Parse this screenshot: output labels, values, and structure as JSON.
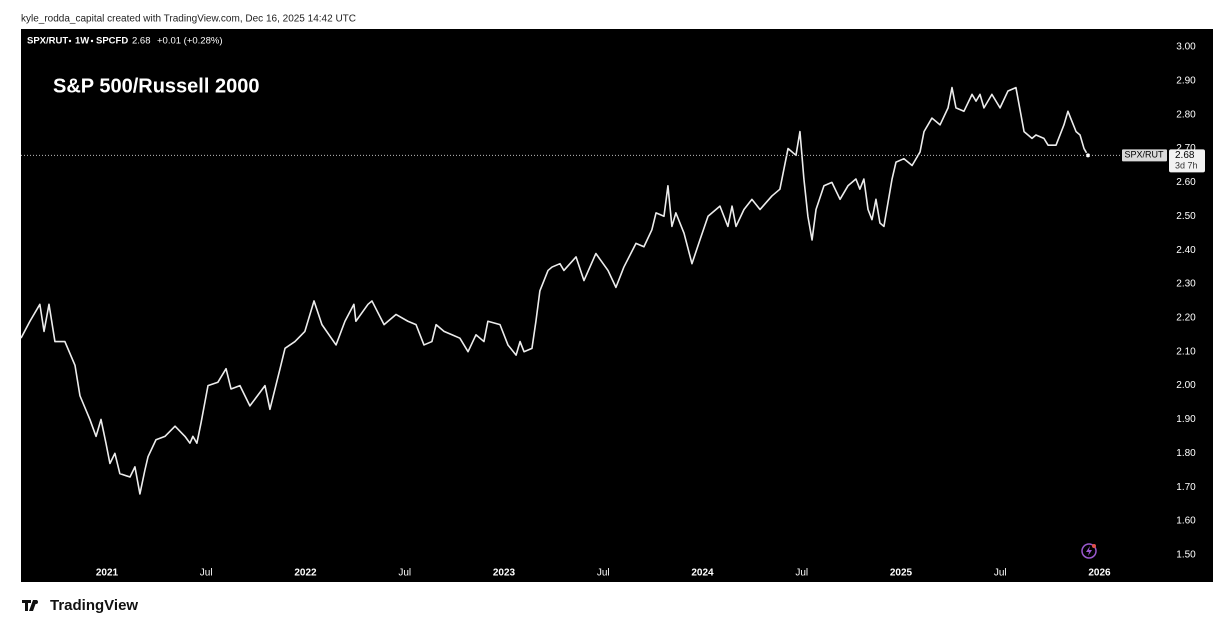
{
  "header": "kyle_rodda_capital created with TradingView.com, Dec 16, 2025 14:42 UTC",
  "footer": "TradingView",
  "chart_data": {
    "type": "line",
    "title": "S&P 500/Russell 2000",
    "symbol": "SPX/RUT",
    "interval": "1W",
    "exchange": "SPCFD",
    "last": 2.68,
    "change": "+0.01 (+0.28%)",
    "countdown": "3d 7h",
    "color": "#ececec",
    "grid": false,
    "x": [
      2020.567,
      2020.612,
      2020.662,
      2020.683,
      2020.708,
      2020.738,
      2020.788,
      2020.839,
      2020.864,
      2020.914,
      2020.945,
      2020.97,
      2020.995,
      2021.015,
      2021.04,
      2021.065,
      2021.116,
      2021.141,
      2021.166,
      2021.191,
      2021.207,
      2021.247,
      2021.292,
      2021.343,
      2021.393,
      2021.418,
      2021.433,
      2021.453,
      2021.474,
      2021.509,
      2021.559,
      2021.6,
      2021.625,
      2021.67,
      2021.72,
      2021.771,
      2021.796,
      2021.821,
      2021.872,
      2021.897,
      2021.947,
      2021.997,
      2022.043,
      2022.083,
      2022.154,
      2022.199,
      2022.244,
      2022.254,
      2022.315,
      2022.335,
      2022.396,
      2022.456,
      2022.516,
      2022.557,
      2022.597,
      2022.637,
      2022.658,
      2022.698,
      2022.738,
      2022.778,
      2022.819,
      2022.859,
      2022.899,
      2022.919,
      2022.98,
      2023.02,
      2023.061,
      2023.081,
      2023.101,
      2023.141,
      2023.161,
      2023.181,
      2023.222,
      2023.242,
      2023.282,
      2023.302,
      2023.363,
      2023.403,
      2023.463,
      2023.524,
      2023.564,
      2023.604,
      2023.665,
      2023.705,
      2023.745,
      2023.766,
      2023.806,
      2023.826,
      2023.846,
      2023.866,
      2023.907,
      2023.947,
      2023.987,
      2024.028,
      2024.088,
      2024.128,
      2024.149,
      2024.169,
      2024.209,
      2024.249,
      2024.29,
      2024.35,
      2024.39,
      2024.431,
      2024.471,
      2024.491,
      2024.511,
      2024.531,
      2024.552,
      2024.572,
      2024.612,
      2024.652,
      2024.693,
      2024.733,
      2024.773,
      2024.793,
      2024.813,
      2024.834,
      2024.854,
      2024.874,
      2024.894,
      2024.914,
      2024.955,
      2024.975,
      2025.015,
      2025.056,
      2025.096,
      2025.116,
      2025.156,
      2025.197,
      2025.237,
      2025.257,
      2025.277,
      2025.317,
      2025.358,
      2025.378,
      2025.398,
      2025.418,
      2025.458,
      2025.499,
      2025.539,
      2025.579,
      2025.62,
      2025.66,
      2025.68,
      2025.72,
      2025.741,
      2025.781,
      2025.821,
      2025.841,
      2025.882,
      2025.902,
      2025.922,
      2025.942
    ],
    "values": [
      2.14,
      2.19,
      2.24,
      2.16,
      2.24,
      2.13,
      2.13,
      2.06,
      1.97,
      1.9,
      1.85,
      1.9,
      1.83,
      1.77,
      1.8,
      1.74,
      1.73,
      1.76,
      1.68,
      1.75,
      1.79,
      1.84,
      1.85,
      1.88,
      1.85,
      1.83,
      1.85,
      1.83,
      1.89,
      2.0,
      2.01,
      2.05,
      1.99,
      2.0,
      1.94,
      1.98,
      2.0,
      1.93,
      2.05,
      2.11,
      2.13,
      2.16,
      2.25,
      2.18,
      2.12,
      2.19,
      2.24,
      2.19,
      2.24,
      2.25,
      2.18,
      2.21,
      2.19,
      2.18,
      2.12,
      2.13,
      2.18,
      2.16,
      2.15,
      2.14,
      2.1,
      2.15,
      2.13,
      2.19,
      2.18,
      2.12,
      2.09,
      2.13,
      2.1,
      2.11,
      2.19,
      2.28,
      2.34,
      2.35,
      2.36,
      2.34,
      2.38,
      2.31,
      2.39,
      2.34,
      2.29,
      2.35,
      2.42,
      2.41,
      2.46,
      2.51,
      2.5,
      2.59,
      2.47,
      2.51,
      2.45,
      2.36,
      2.43,
      2.5,
      2.53,
      2.47,
      2.53,
      2.47,
      2.52,
      2.55,
      2.52,
      2.56,
      2.58,
      2.7,
      2.68,
      2.75,
      2.61,
      2.5,
      2.43,
      2.52,
      2.59,
      2.6,
      2.55,
      2.59,
      2.61,
      2.58,
      2.61,
      2.52,
      2.49,
      2.55,
      2.48,
      2.47,
      2.61,
      2.66,
      2.67,
      2.65,
      2.69,
      2.75,
      2.79,
      2.77,
      2.82,
      2.88,
      2.82,
      2.81,
      2.86,
      2.84,
      2.86,
      2.82,
      2.86,
      2.82,
      2.87,
      2.88,
      2.75,
      2.73,
      2.74,
      2.73,
      2.71,
      2.71,
      2.77,
      2.81,
      2.75,
      2.74,
      2.7,
      2.68
    ],
    "xlim": [
      2020.567,
      2026.33
    ],
    "ylim": [
      1.42,
      3.053
    ],
    "xticks": [
      2021,
      {
        "value": 2021.5,
        "label": "Jul"
      },
      2022,
      {
        "value": 2022.5,
        "label": "Jul"
      },
      2023,
      {
        "value": 2023.5,
        "label": "Jul"
      },
      2024,
      {
        "value": 2024.5,
        "label": "Jul"
      },
      2025,
      {
        "value": 2025.5,
        "label": "Jul"
      },
      2026
    ],
    "yticks": [
      {
        "value": 1.5,
        "label": "1.50"
      },
      {
        "value": 1.6,
        "label": "1.60"
      },
      {
        "value": 1.7,
        "label": "1.70"
      },
      {
        "value": 1.8,
        "label": "1.80"
      },
      {
        "value": 1.9,
        "label": "1.90"
      },
      {
        "value": 2.0,
        "label": "2.00"
      },
      {
        "value": 2.1,
        "label": "2.10"
      },
      {
        "value": 2.2,
        "label": "2.20"
      },
      {
        "value": 2.3,
        "label": "2.30"
      },
      {
        "value": 2.4,
        "label": "2.40"
      },
      {
        "value": 2.5,
        "label": "2.50"
      },
      {
        "value": 2.6,
        "label": "2.60"
      },
      {
        "value": 2.7,
        "label": "2.70"
      },
      {
        "value": 2.8,
        "label": "2.80"
      },
      {
        "value": 2.9,
        "label": "2.90"
      },
      {
        "value": 3.0,
        "label": "3.00"
      }
    ]
  }
}
